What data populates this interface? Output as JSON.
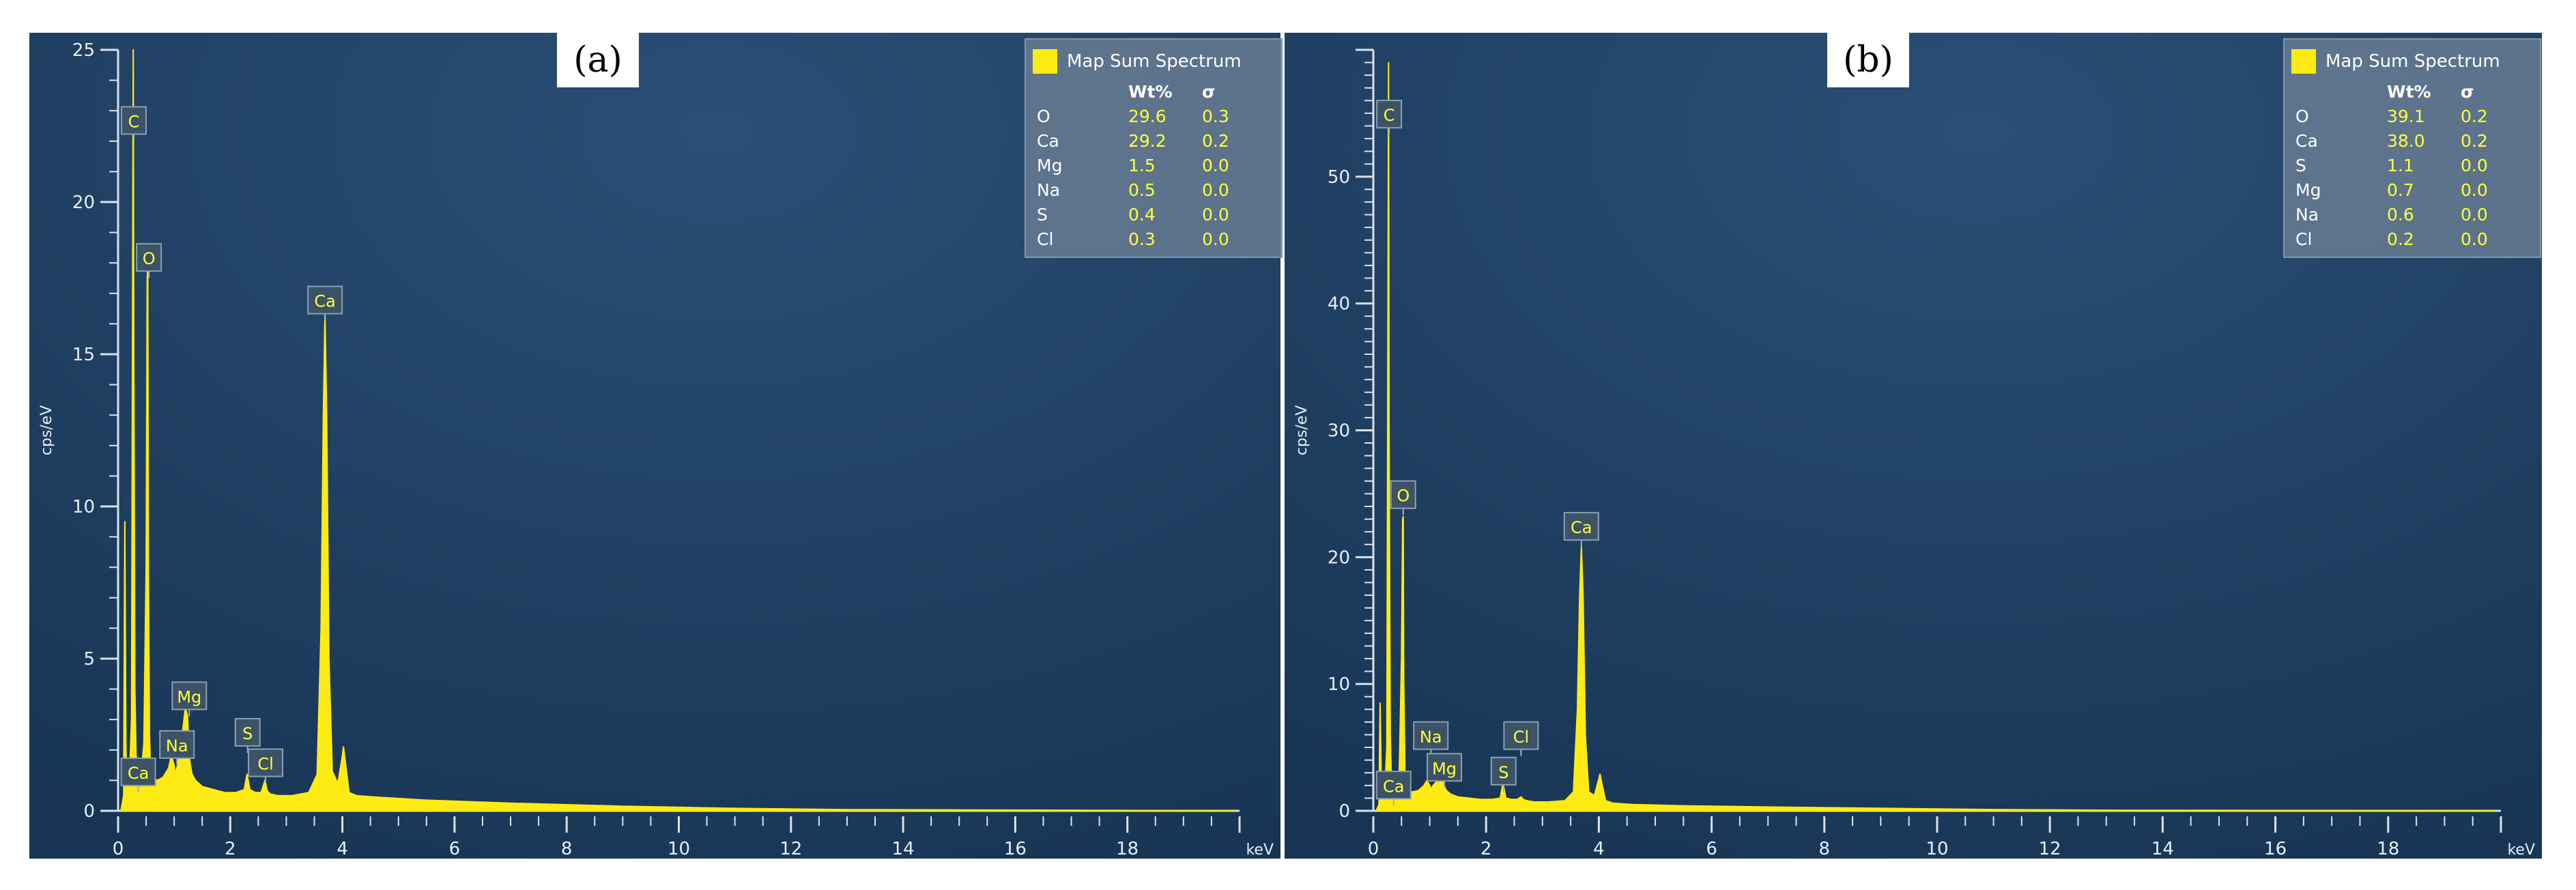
{
  "chart_data": [
    {
      "type": "line",
      "panel_label": "(a)",
      "xlabel": "keV",
      "ylabel": "cps/eV",
      "xlim": [
        0,
        20
      ],
      "ylim": [
        0,
        25
      ],
      "x_ticks": [
        0,
        2,
        4,
        6,
        8,
        10,
        12,
        14,
        16,
        18
      ],
      "y_ticks": [
        0,
        5,
        10,
        15,
        20,
        25
      ],
      "grid": false,
      "legend_position": "top-right",
      "legend": {
        "title": "Map Sum Spectrum",
        "headers": [
          "Wt%",
          "σ"
        ],
        "rows": [
          {
            "element": "O",
            "wt": "29.6",
            "sigma": "0.3"
          },
          {
            "element": "Ca",
            "wt": "29.2",
            "sigma": "0.2"
          },
          {
            "element": "Mg",
            "wt": "1.5",
            "sigma": "0.0"
          },
          {
            "element": "Na",
            "wt": "0.5",
            "sigma": "0.0"
          },
          {
            "element": "S",
            "wt": "0.4",
            "sigma": "0.0"
          },
          {
            "element": "Cl",
            "wt": "0.3",
            "sigma": "0.0"
          }
        ]
      },
      "series": [
        {
          "x": [
            0.05,
            0.1,
            0.12,
            0.14,
            0.16,
            0.2,
            0.24,
            0.26,
            0.27,
            0.28,
            0.3,
            0.32,
            0.36,
            0.42,
            0.46,
            0.5,
            0.52,
            0.53,
            0.54,
            0.56,
            0.58,
            0.62,
            0.7,
            0.8,
            0.9,
            0.95,
            1.0,
            1.02,
            1.06,
            1.1,
            1.15,
            1.2,
            1.24,
            1.26,
            1.28,
            1.32,
            1.38,
            1.5,
            1.7,
            1.9,
            2.1,
            2.25,
            2.3,
            2.35,
            2.45,
            2.55,
            2.62,
            2.66,
            2.72,
            2.85,
            3.1,
            3.4,
            3.55,
            3.62,
            3.66,
            3.69,
            3.72,
            3.76,
            3.82,
            3.92,
            4.0,
            4.02,
            4.06,
            4.12,
            4.25,
            4.6,
            5.5,
            7,
            9,
            11,
            13,
            15,
            17,
            19.9
          ],
          "y": [
            0,
            0.5,
            9.5,
            2,
            0.9,
            0.9,
            3,
            18,
            25,
            15,
            4,
            1.8,
            1.5,
            1.4,
            2.2,
            8,
            17.5,
            17.8,
            8,
            2.5,
            1.2,
            1.1,
            1,
            1.1,
            1.4,
            1.8,
            1.5,
            1.2,
            1.5,
            2,
            2.6,
            3.4,
            3.1,
            2.2,
            1.6,
            1.2,
            1,
            0.8,
            0.7,
            0.6,
            0.6,
            0.7,
            1.2,
            0.7,
            0.6,
            0.6,
            1,
            0.65,
            0.55,
            0.5,
            0.5,
            0.6,
            1.2,
            6,
            13,
            16.3,
            13,
            5,
            1.3,
            0.9,
            1.8,
            2.1,
            1.5,
            0.6,
            0.5,
            0.45,
            0.35,
            0.25,
            0.15,
            0.08,
            0.04,
            0.03,
            0.02,
            0
          ]
        }
      ],
      "peak_labels": [
        {
          "label": "C",
          "x": 0.28,
          "y": 22.5
        },
        {
          "label": "O",
          "x": 0.55,
          "y": 18.0
        },
        {
          "label": "Ca",
          "x": 3.69,
          "y": 16.6
        },
        {
          "label": "Mg",
          "x": 1.27,
          "y": 3.6
        },
        {
          "label": "Na",
          "x": 1.05,
          "y": 2.0
        },
        {
          "label": "S",
          "x": 2.31,
          "y": 2.4
        },
        {
          "label": "Cl",
          "x": 2.63,
          "y": 1.4
        },
        {
          "label": "Ca",
          "x": 0.36,
          "y": 1.1
        }
      ]
    },
    {
      "type": "line",
      "panel_label": "(b)",
      "xlabel": "keV",
      "ylabel": "cps/eV",
      "xlim": [
        0,
        20
      ],
      "ylim": [
        0,
        60
      ],
      "x_ticks": [
        0,
        2,
        4,
        6,
        8,
        10,
        12,
        14,
        16,
        18
      ],
      "y_ticks": [
        0,
        10,
        20,
        30,
        40,
        50
      ],
      "grid": false,
      "legend_position": "top-right",
      "legend": {
        "title": "Map Sum Spectrum",
        "headers": [
          "Wt%",
          "σ"
        ],
        "rows": [
          {
            "element": "O",
            "wt": "39.1",
            "sigma": "0.2"
          },
          {
            "element": "Ca",
            "wt": "38.0",
            "sigma": "0.2"
          },
          {
            "element": "S",
            "wt": "1.1",
            "sigma": "0.0"
          },
          {
            "element": "Mg",
            "wt": "0.7",
            "sigma": "0.0"
          },
          {
            "element": "Na",
            "wt": "0.6",
            "sigma": "0.0"
          },
          {
            "element": "Cl",
            "wt": "0.2",
            "sigma": "0.0"
          }
        ]
      },
      "series": [
        {
          "x": [
            0.05,
            0.1,
            0.12,
            0.14,
            0.16,
            0.2,
            0.24,
            0.26,
            0.27,
            0.28,
            0.3,
            0.32,
            0.36,
            0.42,
            0.46,
            0.5,
            0.52,
            0.53,
            0.54,
            0.56,
            0.58,
            0.62,
            0.7,
            0.8,
            0.9,
            0.95,
            1.0,
            1.02,
            1.06,
            1.1,
            1.15,
            1.2,
            1.24,
            1.26,
            1.28,
            1.32,
            1.38,
            1.5,
            1.7,
            1.9,
            2.1,
            2.25,
            2.3,
            2.35,
            2.45,
            2.55,
            2.62,
            2.66,
            2.72,
            2.85,
            3.1,
            3.4,
            3.55,
            3.62,
            3.66,
            3.69,
            3.72,
            3.76,
            3.82,
            3.92,
            4.0,
            4.02,
            4.06,
            4.12,
            4.25,
            4.6,
            5.5,
            7,
            9,
            11,
            13,
            15,
            17,
            19.9
          ],
          "y": [
            0,
            0.5,
            8.5,
            2.5,
            1.2,
            1.2,
            5,
            40,
            59,
            30,
            6,
            2.5,
            2.2,
            2,
            3,
            12,
            23,
            23.2,
            10,
            3,
            1.7,
            1.5,
            1.5,
            1.6,
            2,
            2.4,
            2,
            1.7,
            2,
            2.2,
            2.5,
            2.6,
            2.4,
            2,
            1.7,
            1.5,
            1.3,
            1.1,
            1,
            0.9,
            0.9,
            1,
            2.2,
            1,
            0.9,
            0.9,
            1.1,
            0.9,
            0.8,
            0.7,
            0.7,
            0.8,
            1.5,
            8,
            17,
            20.8,
            17,
            6,
            1.5,
            1.2,
            2.5,
            2.9,
            2,
            0.8,
            0.6,
            0.5,
            0.4,
            0.3,
            0.2,
            0.1,
            0.05,
            0.04,
            0.03,
            0
          ]
        }
      ],
      "peak_labels": [
        {
          "label": "C",
          "x": 0.28,
          "y": 54.5
        },
        {
          "label": "O",
          "x": 0.53,
          "y": 24.5
        },
        {
          "label": "Ca",
          "x": 3.69,
          "y": 22.0
        },
        {
          "label": "Na",
          "x": 1.02,
          "y": 5.5
        },
        {
          "label": "Mg",
          "x": 1.26,
          "y": 3.0
        },
        {
          "label": "S",
          "x": 2.31,
          "y": 2.7
        },
        {
          "label": "Cl",
          "x": 2.62,
          "y": 5.5
        },
        {
          "label": "Ca",
          "x": 0.36,
          "y": 1.6
        }
      ]
    }
  ],
  "colors": {
    "spectrum": "#ffeb14",
    "background_dark": "#183555",
    "background_light": "#2a4f75",
    "axis": "#d8e2ec",
    "tick_label": "#e8eef4",
    "peak_label_bg": "#3c5266",
    "peak_label_text": "#ffff3c"
  }
}
